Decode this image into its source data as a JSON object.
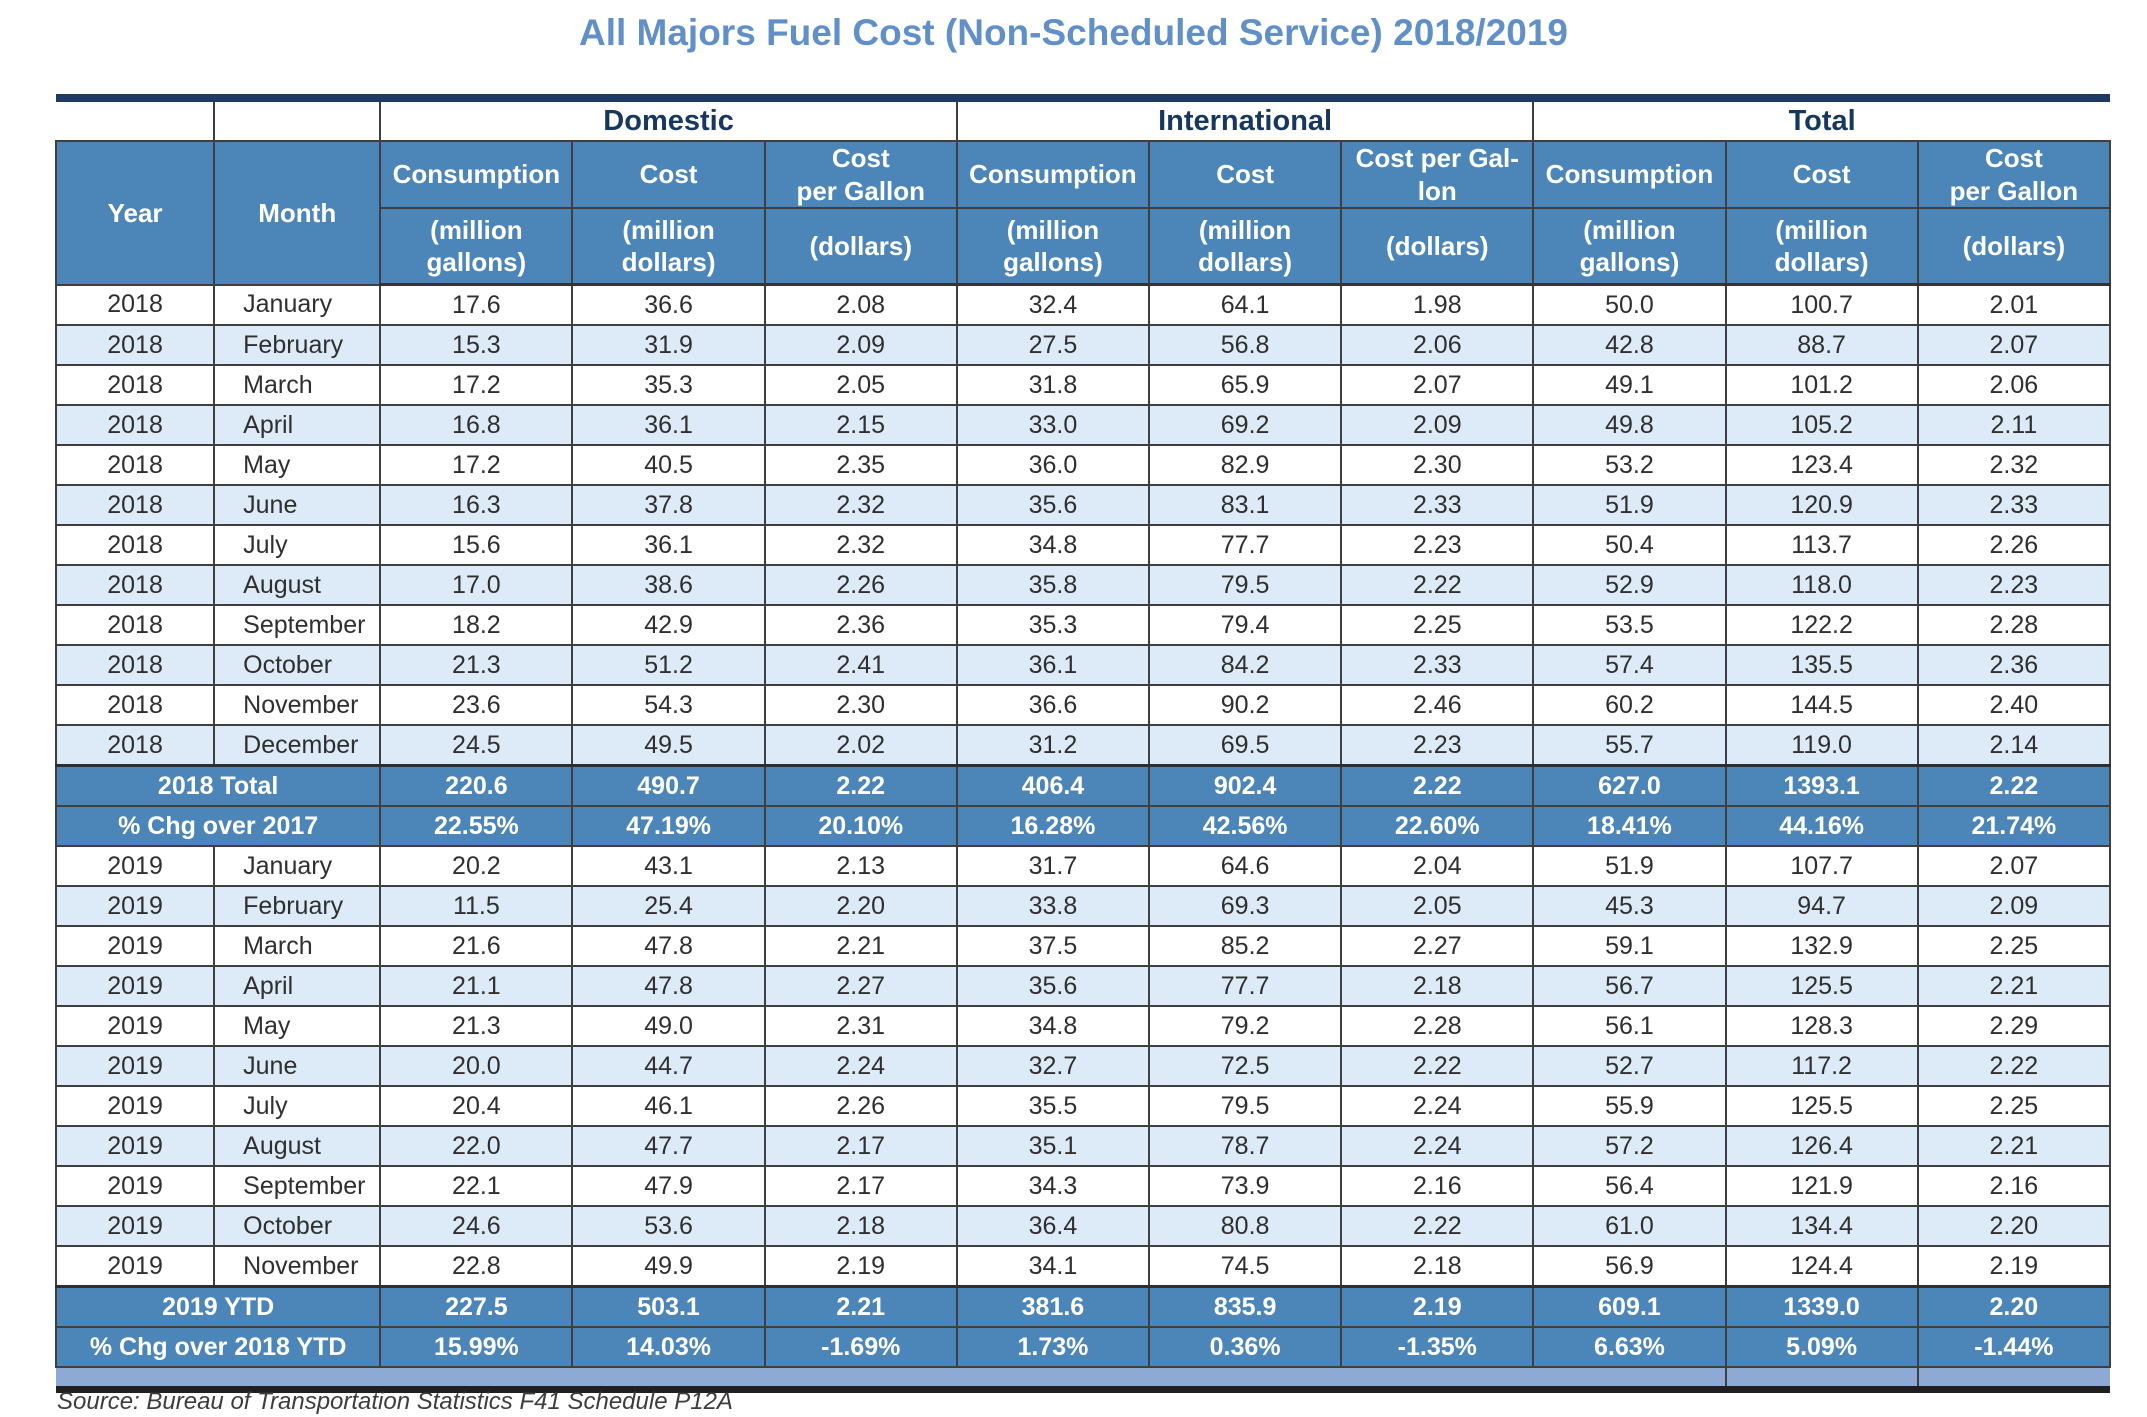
{
  "title": "All Majors Fuel Cost (Non-Scheduled Service) 2018/2019",
  "source_note": "Source: Bureau of Transportation Statistics F41 Schedule P12A",
  "colors": {
    "title_blue": "#6190c8",
    "header_blue": "#4c86b8",
    "row_alt_blue": "#dcebf7",
    "footer_band_blue": "#8da9d4",
    "navy_rule": "#1f3864",
    "grid": "#3f3f3f"
  },
  "table": {
    "year_label": "Year",
    "month_label": "Month",
    "groups": [
      "Domestic",
      "International",
      "Total"
    ],
    "columns": [
      {
        "label": "Consumption",
        "unit": "(million\ngallons)"
      },
      {
        "label": "Cost",
        "unit": "(million\ndollars)"
      },
      {
        "label": "Cost\nper Gallon",
        "unit": "(dollars)"
      },
      {
        "label": "Consumption",
        "unit": "(million\ngallons)"
      },
      {
        "label": "Cost",
        "unit": "(million\ndollars)"
      },
      {
        "label": "Cost per Gal-\nlon",
        "unit": "(dollars)"
      },
      {
        "label": "Consumption",
        "unit": "(million\ngallons)"
      },
      {
        "label": "Cost",
        "unit": "(million\ndollars)"
      },
      {
        "label": "Cost\nper Gallon",
        "unit": "(dollars)"
      }
    ],
    "rows": [
      {
        "type": "data",
        "year": "2018",
        "month": "January",
        "values": [
          "17.6",
          "36.6",
          "2.08",
          "32.4",
          "64.1",
          "1.98",
          "50.0",
          "100.7",
          "2.01"
        ]
      },
      {
        "type": "data",
        "year": "2018",
        "month": "February",
        "values": [
          "15.3",
          "31.9",
          "2.09",
          "27.5",
          "56.8",
          "2.06",
          "42.8",
          "88.7",
          "2.07"
        ]
      },
      {
        "type": "data",
        "year": "2018",
        "month": "March",
        "values": [
          "17.2",
          "35.3",
          "2.05",
          "31.8",
          "65.9",
          "2.07",
          "49.1",
          "101.2",
          "2.06"
        ]
      },
      {
        "type": "data",
        "year": "2018",
        "month": "April",
        "values": [
          "16.8",
          "36.1",
          "2.15",
          "33.0",
          "69.2",
          "2.09",
          "49.8",
          "105.2",
          "2.11"
        ]
      },
      {
        "type": "data",
        "year": "2018",
        "month": "May",
        "values": [
          "17.2",
          "40.5",
          "2.35",
          "36.0",
          "82.9",
          "2.30",
          "53.2",
          "123.4",
          "2.32"
        ]
      },
      {
        "type": "data",
        "year": "2018",
        "month": "June",
        "values": [
          "16.3",
          "37.8",
          "2.32",
          "35.6",
          "83.1",
          "2.33",
          "51.9",
          "120.9",
          "2.33"
        ]
      },
      {
        "type": "data",
        "year": "2018",
        "month": "July",
        "values": [
          "15.6",
          "36.1",
          "2.32",
          "34.8",
          "77.7",
          "2.23",
          "50.4",
          "113.7",
          "2.26"
        ]
      },
      {
        "type": "data",
        "year": "2018",
        "month": "August",
        "values": [
          "17.0",
          "38.6",
          "2.26",
          "35.8",
          "79.5",
          "2.22",
          "52.9",
          "118.0",
          "2.23"
        ]
      },
      {
        "type": "data",
        "year": "2018",
        "month": "September",
        "values": [
          "18.2",
          "42.9",
          "2.36",
          "35.3",
          "79.4",
          "2.25",
          "53.5",
          "122.2",
          "2.28"
        ]
      },
      {
        "type": "data",
        "year": "2018",
        "month": "October",
        "values": [
          "21.3",
          "51.2",
          "2.41",
          "36.1",
          "84.2",
          "2.33",
          "57.4",
          "135.5",
          "2.36"
        ]
      },
      {
        "type": "data",
        "year": "2018",
        "month": "November",
        "values": [
          "23.6",
          "54.3",
          "2.30",
          "36.6",
          "90.2",
          "2.46",
          "60.2",
          "144.5",
          "2.40"
        ]
      },
      {
        "type": "data",
        "year": "2018",
        "month": "December",
        "values": [
          "24.5",
          "49.5",
          "2.02",
          "31.2",
          "69.5",
          "2.23",
          "55.7",
          "119.0",
          "2.14"
        ]
      },
      {
        "type": "summary",
        "label": "2018 Total",
        "thick_top": true,
        "values": [
          "220.6",
          "490.7",
          "2.22",
          "406.4",
          "902.4",
          "2.22",
          "627.0",
          "1393.1",
          "2.22"
        ]
      },
      {
        "type": "summary",
        "label": "% Chg over 2017",
        "thick_top": false,
        "values": [
          "22.55%",
          "47.19%",
          "20.10%",
          "16.28%",
          "42.56%",
          "22.60%",
          "18.41%",
          "44.16%",
          "21.74%"
        ]
      },
      {
        "type": "data",
        "year": "2019",
        "month": "January",
        "values": [
          "20.2",
          "43.1",
          "2.13",
          "31.7",
          "64.6",
          "2.04",
          "51.9",
          "107.7",
          "2.07"
        ]
      },
      {
        "type": "data",
        "year": "2019",
        "month": "February",
        "values": [
          "11.5",
          "25.4",
          "2.20",
          "33.8",
          "69.3",
          "2.05",
          "45.3",
          "94.7",
          "2.09"
        ]
      },
      {
        "type": "data",
        "year": "2019",
        "month": "March",
        "values": [
          "21.6",
          "47.8",
          "2.21",
          "37.5",
          "85.2",
          "2.27",
          "59.1",
          "132.9",
          "2.25"
        ]
      },
      {
        "type": "data",
        "year": "2019",
        "month": "April",
        "values": [
          "21.1",
          "47.8",
          "2.27",
          "35.6",
          "77.7",
          "2.18",
          "56.7",
          "125.5",
          "2.21"
        ]
      },
      {
        "type": "data",
        "year": "2019",
        "month": "May",
        "values": [
          "21.3",
          "49.0",
          "2.31",
          "34.8",
          "79.2",
          "2.28",
          "56.1",
          "128.3",
          "2.29"
        ]
      },
      {
        "type": "data",
        "year": "2019",
        "month": "June",
        "values": [
          "20.0",
          "44.7",
          "2.24",
          "32.7",
          "72.5",
          "2.22",
          "52.7",
          "117.2",
          "2.22"
        ]
      },
      {
        "type": "data",
        "year": "2019",
        "month": "July",
        "values": [
          "20.4",
          "46.1",
          "2.26",
          "35.5",
          "79.5",
          "2.24",
          "55.9",
          "125.5",
          "2.25"
        ]
      },
      {
        "type": "data",
        "year": "2019",
        "month": "August",
        "values": [
          "22.0",
          "47.7",
          "2.17",
          "35.1",
          "78.7",
          "2.24",
          "57.2",
          "126.4",
          "2.21"
        ]
      },
      {
        "type": "data",
        "year": "2019",
        "month": "September",
        "values": [
          "22.1",
          "47.9",
          "2.17",
          "34.3",
          "73.9",
          "2.16",
          "56.4",
          "121.9",
          "2.16"
        ]
      },
      {
        "type": "data",
        "year": "2019",
        "month": "October",
        "values": [
          "24.6",
          "53.6",
          "2.18",
          "36.4",
          "80.8",
          "2.22",
          "61.0",
          "134.4",
          "2.20"
        ]
      },
      {
        "type": "data",
        "year": "2019",
        "month": "November",
        "values": [
          "22.8",
          "49.9",
          "2.19",
          "34.1",
          "74.5",
          "2.18",
          "56.9",
          "124.4",
          "2.19"
        ]
      },
      {
        "type": "summary",
        "label": "2019 YTD",
        "thick_top": true,
        "values": [
          "227.5",
          "503.1",
          "2.21",
          "381.6",
          "835.9",
          "2.19",
          "609.1",
          "1339.0",
          "2.20"
        ]
      },
      {
        "type": "summary",
        "label": "% Chg over 2018 YTD",
        "thick_top": false,
        "values": [
          "15.99%",
          "14.03%",
          "-1.69%",
          "1.73%",
          "0.36%",
          "-1.35%",
          "6.63%",
          "5.09%",
          "-1.44%"
        ]
      }
    ]
  }
}
